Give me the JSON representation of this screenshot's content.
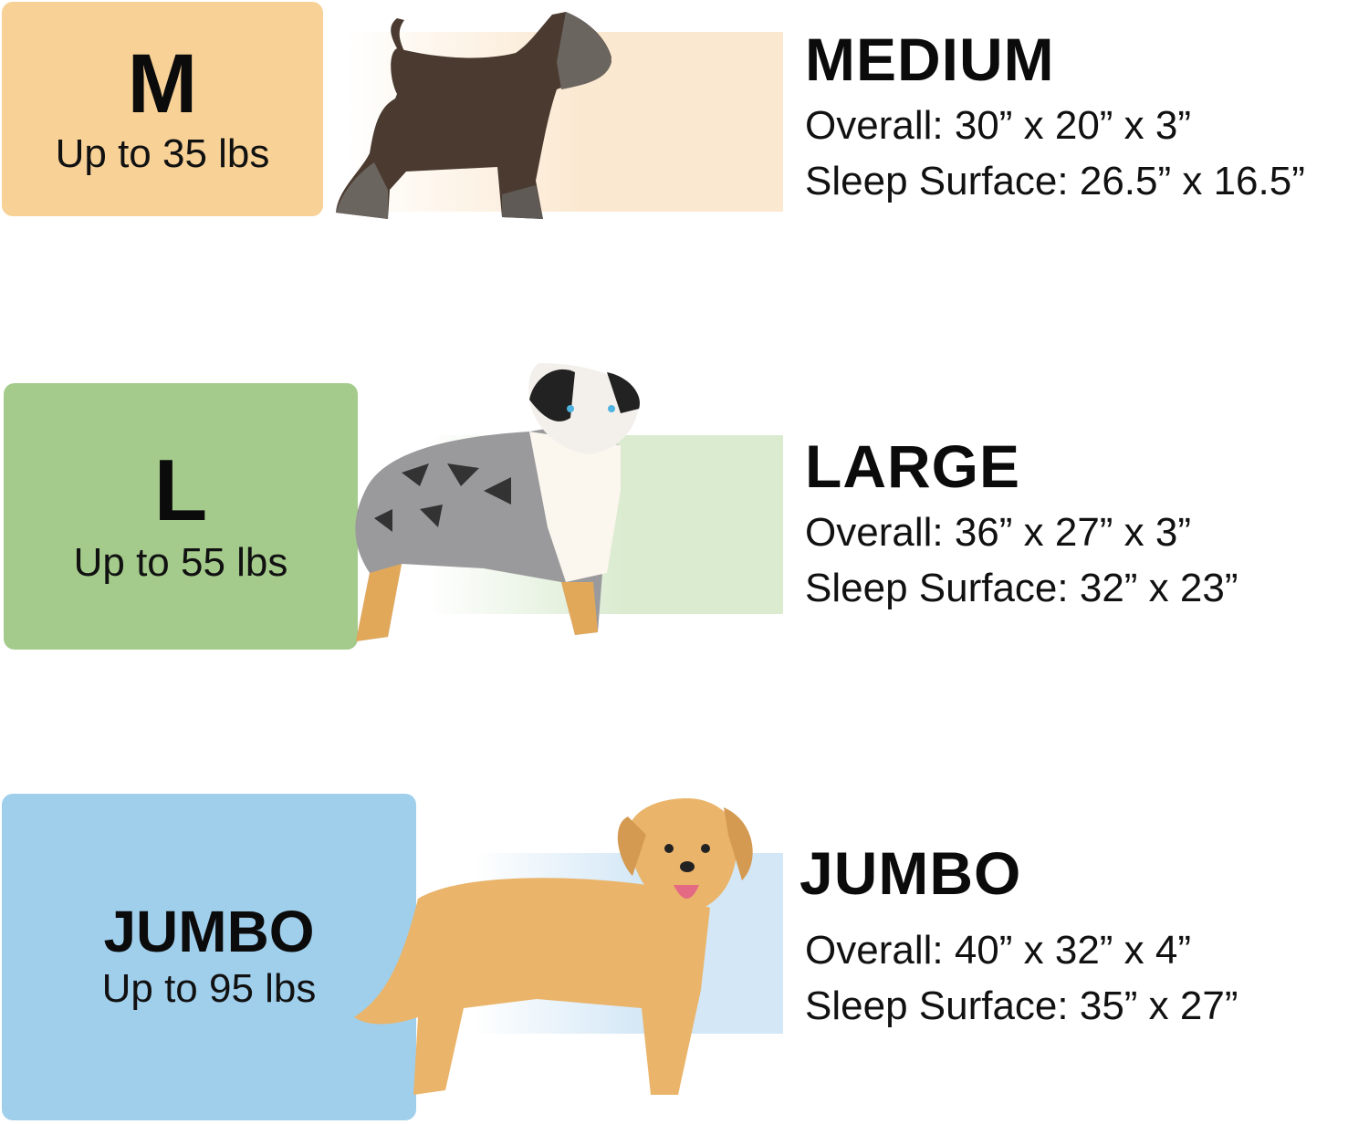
{
  "sizes": [
    {
      "badge": "M",
      "weight": "Up to 35 lbs",
      "title": "MEDIUM",
      "overall": "Overall: 30” x 20” x 3”",
      "sleep": "Sleep Surface: 26.5” x 16.5”",
      "color": "#F7D196",
      "band_color": "#FBE8D0",
      "dog": "schnauzer-dog-icon"
    },
    {
      "badge": "L",
      "weight": "Up to 55 lbs",
      "title": "LARGE",
      "overall": "Overall: 36” x 27” x 3”",
      "sleep": "Sleep Surface: 32” x 23”",
      "color": "#A4CB8C",
      "band_color": "#DAEBD0",
      "dog": "australian-shepherd-dog-icon"
    },
    {
      "badge": "JUMBO",
      "weight": "Up to 95 lbs",
      "title": "JUMBO",
      "overall": "Overall: 40” x 32” x 4”",
      "sleep": "Sleep Surface: 35” x 27”",
      "color": "#A0CFEC",
      "band_color": "#D3E7F6",
      "dog": "golden-retriever-dog-icon"
    }
  ]
}
